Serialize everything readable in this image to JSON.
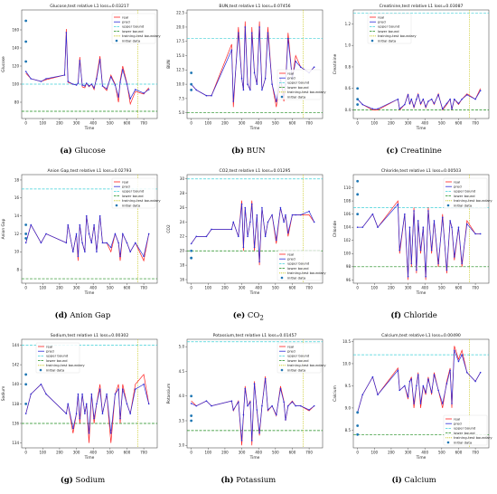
{
  "legend_labels": [
    "real",
    "pred",
    "upper bound",
    "lower bound",
    "training-test boundary",
    "initial data"
  ],
  "colors": {
    "real": "#ff2020",
    "pred": "#2a2ad8",
    "upper": "#3fd0d8",
    "lower": "#1a8a1a",
    "boundary": "#c8c820",
    "initial": "#1f77b4",
    "point": "#2a2ad8"
  },
  "chart_data": [
    {
      "type": "line",
      "id": "glucose",
      "caption_letter": "(a)",
      "caption_text": "Glucose",
      "title": "Glucose,test relative L1 loss=0.03217",
      "xlabel": "Time",
      "ylabel": "Glucose",
      "xlim": [
        -25,
        780
      ],
      "ylim": [
        62,
        182
      ],
      "xticks": [
        0,
        100,
        200,
        300,
        400,
        500,
        600,
        700
      ],
      "yticks": [
        80,
        100,
        120,
        140,
        160
      ],
      "upper": 100,
      "lower": 70,
      "boundary": 665,
      "legend_pos": "top-right",
      "initial": [
        [
          0,
          170
        ],
        [
          0,
          147
        ],
        [
          0,
          125
        ]
      ],
      "x": [
        0,
        30,
        90,
        120,
        230,
        240,
        250,
        280,
        300,
        310,
        320,
        335,
        350,
        360,
        375,
        390,
        405,
        420,
        440,
        455,
        480,
        505,
        530,
        550,
        560,
        575,
        600,
        620,
        650,
        700,
        730
      ],
      "real": [
        112,
        106,
        103,
        105,
        110,
        161,
        102,
        100,
        99,
        101,
        130,
        97,
        96,
        101,
        97,
        100,
        94,
        108,
        131,
        98,
        93,
        110,
        100,
        80,
        104,
        120,
        101,
        78,
        92,
        89,
        96
      ],
      "pred": [
        114,
        106,
        103,
        106,
        110,
        157,
        103,
        100,
        99,
        101,
        126,
        99,
        98,
        101,
        98,
        100,
        96,
        106,
        127,
        98,
        95,
        108,
        99,
        86,
        102,
        116,
        100,
        84,
        94,
        90,
        94
      ]
    },
    {
      "type": "line",
      "id": "bun",
      "caption_letter": "(b)",
      "caption_text": "BUN",
      "title": "BUN,test relative L1 loss=0.07456",
      "xlabel": "Time",
      "ylabel": "BUN",
      "xlim": [
        -25,
        780
      ],
      "ylim": [
        4,
        23
      ],
      "xticks": [
        0,
        100,
        200,
        300,
        400,
        500,
        600,
        700
      ],
      "yticks": [
        5.0,
        7.5,
        10.0,
        12.5,
        15.0,
        17.5,
        20.0,
        22.5
      ],
      "upper": 18,
      "lower": 5,
      "boundary": 665,
      "legend_pos": "center-right",
      "initial": [
        [
          0,
          12
        ],
        [
          0,
          10
        ],
        [
          0,
          9
        ]
      ],
      "x": [
        0,
        30,
        90,
        120,
        240,
        250,
        280,
        300,
        310,
        320,
        335,
        350,
        360,
        375,
        390,
        405,
        420,
        440,
        455,
        480,
        505,
        530,
        550,
        560,
        575,
        600,
        620,
        650,
        700,
        730
      ],
      "real": [
        10,
        9,
        8,
        8,
        17,
        6,
        20,
        11,
        9,
        21,
        10,
        9,
        20,
        12,
        10,
        21,
        9,
        11,
        20,
        10,
        6,
        11,
        7,
        10,
        19,
        11,
        15,
        13,
        12,
        13
      ],
      "pred": [
        10,
        9,
        8,
        8,
        16,
        7,
        19,
        11,
        9,
        20,
        10,
        9,
        19,
        12,
        10,
        20,
        9,
        11,
        19,
        10,
        7,
        11,
        8,
        10,
        18,
        11,
        14,
        13,
        12,
        13
      ]
    },
    {
      "type": "line",
      "id": "creatinine",
      "caption_letter": "(c)",
      "caption_text": "Creatinine",
      "title": "Creatinine,test relative L1 loss=0.03087",
      "xlabel": "Time",
      "ylabel": "Creatinine",
      "xlim": [
        -25,
        780
      ],
      "ylim": [
        0.32,
        1.33
      ],
      "xticks": [
        0,
        100,
        200,
        300,
        400,
        500,
        600,
        700
      ],
      "yticks": [
        0.4,
        0.6,
        0.8,
        1.0,
        1.2
      ],
      "upper": 1.3,
      "lower": 0.4,
      "boundary": 665,
      "legend_pos": "top-left",
      "initial": [
        [
          0,
          0.6
        ],
        [
          0,
          0.5
        ],
        [
          0,
          0.45
        ]
      ],
      "x": [
        0,
        30,
        90,
        120,
        240,
        250,
        280,
        300,
        310,
        320,
        335,
        350,
        360,
        375,
        390,
        405,
        420,
        440,
        455,
        480,
        505,
        530,
        550,
        560,
        575,
        600,
        620,
        650,
        700,
        730
      ],
      "real": [
        0.5,
        0.45,
        0.4,
        0.4,
        0.5,
        0.4,
        0.45,
        0.55,
        0.45,
        0.5,
        0.42,
        0.5,
        0.55,
        0.45,
        0.5,
        0.42,
        0.48,
        0.5,
        0.45,
        0.55,
        0.4,
        0.45,
        0.5,
        0.4,
        0.5,
        0.45,
        0.5,
        0.55,
        0.5,
        0.6
      ],
      "pred": [
        0.5,
        0.45,
        0.41,
        0.41,
        0.5,
        0.41,
        0.45,
        0.54,
        0.46,
        0.5,
        0.43,
        0.5,
        0.54,
        0.46,
        0.5,
        0.43,
        0.48,
        0.5,
        0.46,
        0.54,
        0.41,
        0.46,
        0.5,
        0.41,
        0.5,
        0.46,
        0.5,
        0.54,
        0.5,
        0.58
      ]
    },
    {
      "type": "line",
      "id": "aniongap",
      "caption_letter": "(d)",
      "caption_text": "Anion Gap",
      "title": "Anion Gap,test relative L1 loss=0.02793",
      "xlabel": "Time",
      "ylabel": "Anion Gap",
      "xlim": [
        -25,
        780
      ],
      "ylim": [
        6.5,
        18.6
      ],
      "xticks": [
        0,
        100,
        200,
        300,
        400,
        500,
        600,
        700
      ],
      "yticks": [
        8,
        10,
        12,
        14,
        16,
        18
      ],
      "upper": 17,
      "lower": 7,
      "boundary": 665,
      "legend_pos": "top-right",
      "initial": [
        [
          0,
          13
        ],
        [
          0,
          12
        ],
        [
          0,
          11.5
        ]
      ],
      "x": [
        0,
        30,
        90,
        120,
        240,
        250,
        280,
        300,
        310,
        320,
        335,
        350,
        360,
        375,
        390,
        405,
        420,
        440,
        455,
        480,
        505,
        530,
        550,
        560,
        575,
        600,
        620,
        650,
        700,
        730
      ],
      "real": [
        11,
        13,
        11,
        12,
        11,
        13,
        10,
        12,
        9,
        13,
        11,
        10,
        14,
        12,
        11,
        13,
        10,
        14,
        11,
        11,
        10,
        12,
        11,
        9,
        12,
        11,
        10,
        11,
        9,
        12
      ],
      "pred": [
        11,
        13,
        11,
        12,
        11,
        13,
        10,
        12,
        9.5,
        13,
        11,
        10,
        14,
        12,
        11,
        13,
        10,
        14,
        11,
        11,
        10.5,
        12,
        11,
        9.5,
        12,
        11,
        10,
        11,
        9.5,
        12
      ]
    },
    {
      "type": "line",
      "id": "co2",
      "caption_letter": "(e)",
      "caption_text": "CO",
      "caption_sub": "2",
      "title": "CO2,test relative L1 loss=0.01295",
      "xlabel": "Time",
      "ylabel": "CO2",
      "xlim": [
        -25,
        780
      ],
      "ylim": [
        15.5,
        30.6
      ],
      "xticks": [
        0,
        100,
        200,
        300,
        400,
        500,
        600,
        700
      ],
      "yticks": [
        16,
        18,
        20,
        22,
        24,
        26,
        28,
        30
      ],
      "upper": 30,
      "lower": 20,
      "boundary": 665,
      "legend_pos": "bottom-right",
      "initial": [
        [
          0,
          20
        ],
        [
          0,
          19
        ],
        [
          0,
          19
        ]
      ],
      "x": [
        0,
        30,
        90,
        120,
        240,
        250,
        280,
        300,
        310,
        320,
        335,
        350,
        360,
        375,
        390,
        405,
        420,
        440,
        455,
        480,
        505,
        530,
        550,
        560,
        575,
        600,
        620,
        650,
        700,
        730
      ],
      "real": [
        21,
        22,
        22,
        23,
        23,
        24,
        22,
        27,
        20,
        26,
        22,
        24,
        27,
        20,
        25,
        18,
        26,
        22,
        24,
        25,
        21,
        26,
        24,
        25,
        22,
        25,
        25,
        25,
        25,
        24
      ],
      "pred": [
        21,
        22,
        22,
        23,
        23,
        24,
        22,
        26.5,
        20.5,
        26,
        22,
        24,
        26.5,
        20.5,
        25,
        18.5,
        26,
        22,
        24,
        25,
        21.5,
        26,
        24,
        25,
        22.5,
        25,
        25,
        25,
        25.5,
        24
      ]
    },
    {
      "type": "line",
      "id": "chloride",
      "caption_letter": "(f)",
      "caption_text": "Chloride",
      "title": "Chloride,test relative L1 loss=0.00503",
      "xlabel": "Time",
      "ylabel": "Chloride",
      "xlim": [
        -25,
        780
      ],
      "ylim": [
        95.5,
        112
      ],
      "xticks": [
        0,
        100,
        200,
        300,
        400,
        500,
        600,
        700
      ],
      "yticks": [
        96,
        98,
        100,
        102,
        104,
        106,
        108,
        110
      ],
      "upper": 107,
      "lower": 98,
      "boundary": 665,
      "legend_pos": "top-right",
      "initial": [
        [
          0,
          111
        ],
        [
          0,
          109
        ],
        [
          0,
          106
        ]
      ],
      "x": [
        0,
        30,
        90,
        120,
        240,
        250,
        280,
        300,
        310,
        320,
        335,
        350,
        360,
        375,
        390,
        405,
        420,
        440,
        455,
        480,
        505,
        530,
        550,
        560,
        575,
        600,
        620,
        650,
        700,
        730
      ],
      "real": [
        104,
        104,
        106,
        104,
        108,
        100,
        106,
        96,
        104,
        98,
        107,
        97,
        105,
        100,
        104,
        96,
        107,
        100,
        105,
        98,
        106,
        97,
        105,
        104,
        99,
        104,
        98,
        105,
        103,
        103
      ],
      "pred": [
        104,
        104,
        106,
        104,
        107.5,
        100.5,
        106,
        96.5,
        104,
        98.5,
        106.5,
        97.5,
        105,
        100.5,
        104,
        96.5,
        106.5,
        100.5,
        105,
        98.5,
        105.5,
        97.5,
        105,
        104,
        99.5,
        104,
        98.5,
        104.5,
        103,
        103
      ]
    },
    {
      "type": "line",
      "id": "sodium",
      "caption_letter": "(g)",
      "caption_text": "Sodium",
      "title": "Sodium,test relative L1 loss=0.00302",
      "xlabel": "Time",
      "ylabel": "Sodium",
      "xlim": [
        -25,
        780
      ],
      "ylim": [
        133.5,
        144.6
      ],
      "xticks": [
        0,
        100,
        200,
        300,
        400,
        500,
        600,
        700
      ],
      "yticks": [
        134,
        136,
        138,
        140,
        142,
        144
      ],
      "upper": 144,
      "lower": 136,
      "boundary": 665,
      "legend_pos": "top-left",
      "initial": [
        [
          0,
          141
        ],
        [
          0,
          140
        ],
        [
          0,
          138
        ]
      ],
      "x": [
        0,
        30,
        90,
        120,
        240,
        250,
        280,
        300,
        310,
        320,
        335,
        350,
        360,
        375,
        390,
        405,
        420,
        440,
        455,
        480,
        505,
        530,
        550,
        560,
        575,
        600,
        620,
        650,
        700,
        730
      ],
      "real": [
        137,
        139,
        140,
        139,
        137,
        138,
        135,
        137,
        139,
        136,
        139,
        137,
        138,
        134,
        139,
        136,
        138,
        140,
        137,
        139,
        134,
        139,
        140,
        136,
        140,
        138,
        137,
        140,
        141,
        138
      ],
      "pred": [
        137,
        139,
        140,
        139,
        137,
        138,
        135.5,
        137,
        139,
        136.5,
        139,
        137,
        138,
        135,
        139,
        136.5,
        138,
        139.5,
        137,
        139,
        135,
        139,
        139.5,
        136.5,
        139.5,
        138,
        137,
        139.5,
        140,
        138
      ]
    },
    {
      "type": "line",
      "id": "potassium",
      "caption_letter": "(h)",
      "caption_text": "Potassium",
      "title": "Potassium,test relative L1 loss=0.01457",
      "xlabel": "Time",
      "ylabel": "Potassium",
      "xlim": [
        -25,
        780
      ],
      "ylim": [
        2.95,
        5.15
      ],
      "xticks": [
        0,
        100,
        200,
        300,
        400,
        500,
        600,
        700
      ],
      "yticks": [
        3.0,
        3.5,
        4.0,
        4.5,
        5.0
      ],
      "upper": 5.1,
      "lower": 3.3,
      "boundary": 665,
      "legend_pos": "top-right",
      "initial": [
        [
          0,
          4.0
        ],
        [
          0,
          3.6
        ],
        [
          0,
          3.5
        ]
      ],
      "x": [
        0,
        30,
        90,
        120,
        240,
        250,
        280,
        300,
        310,
        320,
        335,
        350,
        360,
        375,
        390,
        405,
        420,
        440,
        455,
        480,
        505,
        530,
        550,
        560,
        575,
        600,
        620,
        650,
        700,
        730
      ],
      "real": [
        3.9,
        3.8,
        3.9,
        3.8,
        3.9,
        3.7,
        3.9,
        3.0,
        3.6,
        4.2,
        3.8,
        3.9,
        3.0,
        4.3,
        3.7,
        3.2,
        3.8,
        4.4,
        3.7,
        3.8,
        3.6,
        4.2,
        3.9,
        3.5,
        3.8,
        3.9,
        3.8,
        3.8,
        3.7,
        3.8
      ],
      "pred": [
        3.85,
        3.8,
        3.9,
        3.8,
        3.9,
        3.72,
        3.88,
        3.1,
        3.62,
        4.15,
        3.8,
        3.88,
        3.1,
        4.25,
        3.72,
        3.25,
        3.8,
        4.35,
        3.72,
        3.8,
        3.62,
        4.15,
        3.88,
        3.52,
        3.8,
        3.88,
        3.8,
        3.8,
        3.72,
        3.8
      ]
    },
    {
      "type": "line",
      "id": "calcium",
      "caption_letter": "(i)",
      "caption_text": "Calcium",
      "title": "Calcium,test relative L1 loss=0.00490",
      "xlabel": "Time",
      "ylabel": "Calcium",
      "xlim": [
        -25,
        780
      ],
      "ylim": [
        8.1,
        10.55
      ],
      "xticks": [
        0,
        100,
        200,
        300,
        400,
        500,
        600,
        700
      ],
      "yticks": [
        8.5,
        9.0,
        9.5,
        10.0,
        10.5
      ],
      "upper": 10.2,
      "lower": 8.4,
      "boundary": 665,
      "legend_pos": "bottom-right",
      "initial": [
        [
          0,
          8.9
        ],
        [
          0,
          8.6
        ],
        [
          0,
          8.4
        ]
      ],
      "x": [
        0,
        30,
        90,
        120,
        240,
        250,
        280,
        300,
        310,
        320,
        335,
        350,
        360,
        375,
        390,
        405,
        420,
        440,
        455,
        480,
        505,
        530,
        550,
        560,
        575,
        600,
        620,
        650,
        700,
        730
      ],
      "real": [
        8.9,
        9.3,
        9.7,
        9.3,
        9.9,
        9.4,
        9.5,
        9.2,
        9.6,
        9.7,
        9.0,
        9.5,
        9.8,
        9.0,
        9.5,
        9.3,
        9.7,
        9.3,
        9.8,
        9.4,
        9.0,
        9.6,
        9.9,
        9.0,
        10.4,
        10.1,
        10.3,
        9.8,
        9.6,
        9.8
      ],
      "pred": [
        8.9,
        9.3,
        9.7,
        9.3,
        9.85,
        9.4,
        9.5,
        9.25,
        9.6,
        9.65,
        9.1,
        9.5,
        9.75,
        9.1,
        9.5,
        9.35,
        9.65,
        9.35,
        9.75,
        9.4,
        9.1,
        9.55,
        9.85,
        9.1,
        10.3,
        10.05,
        10.2,
        9.8,
        9.6,
        9.8
      ]
    }
  ]
}
